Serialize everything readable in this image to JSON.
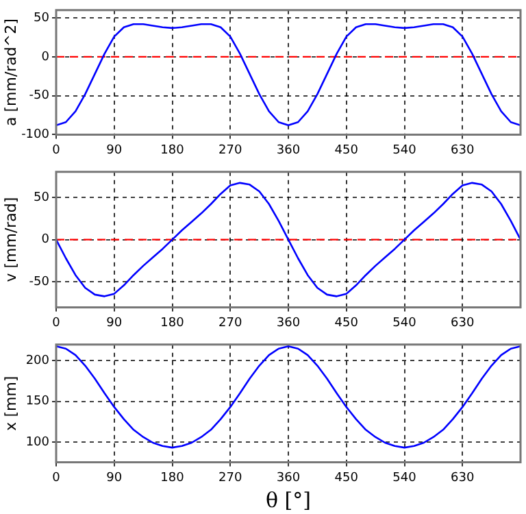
{
  "chart_data": [
    {
      "type": "line",
      "ylabel": "a [mm/rad^2]",
      "x": [
        0,
        15,
        30,
        45,
        60,
        75,
        90,
        105,
        120,
        135,
        150,
        165,
        180,
        195,
        210,
        225,
        240,
        255,
        270,
        285,
        300,
        315,
        330,
        345,
        360,
        375,
        390,
        405,
        420,
        435,
        450,
        465,
        480,
        495,
        510,
        525,
        540,
        555,
        570,
        585,
        600,
        615,
        630,
        645,
        660,
        675,
        690,
        705,
        720
      ],
      "series": [
        {
          "color": "#0000ff",
          "values": [
            -88,
            -84,
            -70,
            -48,
            -22,
            4,
            26,
            38,
            42,
            42,
            40,
            38,
            37,
            38,
            40,
            42,
            42,
            38,
            26,
            4,
            -22,
            -48,
            -70,
            -84,
            -88,
            -84,
            -70,
            -48,
            -22,
            4,
            26,
            38,
            42,
            42,
            40,
            38,
            37,
            38,
            40,
            42,
            42,
            38,
            26,
            4,
            -22,
            -48,
            -70,
            -84,
            -88
          ]
        }
      ],
      "xlim": [
        0,
        720
      ],
      "xticks": [
        0,
        90,
        180,
        270,
        360,
        450,
        540,
        630
      ],
      "ylim": [
        -100,
        60
      ],
      "yticks": [
        -100,
        -50,
        0,
        50
      ],
      "grid": true,
      "legend": false,
      "marker": "none",
      "ref_lines": [
        {
          "axis": "y",
          "value": 0,
          "color": "#ff0000",
          "line_style": "dashed"
        }
      ]
    },
    {
      "type": "line",
      "ylabel": "v [mm/rad]",
      "x": [
        0,
        15,
        30,
        45,
        60,
        75,
        90,
        105,
        120,
        135,
        150,
        165,
        180,
        195,
        210,
        225,
        240,
        255,
        270,
        285,
        300,
        315,
        330,
        345,
        360,
        375,
        390,
        405,
        420,
        435,
        450,
        465,
        480,
        495,
        510,
        525,
        540,
        555,
        570,
        585,
        600,
        615,
        630,
        645,
        660,
        675,
        690,
        705,
        720
      ],
      "series": [
        {
          "color": "#0000ff",
          "values": [
            0,
            -22,
            -42,
            -57,
            -65,
            -67,
            -64,
            -54,
            -42,
            -31,
            -21,
            -11,
            0,
            11,
            21,
            31,
            42,
            54,
            64,
            67,
            65,
            57,
            42,
            22,
            0,
            -22,
            -42,
            -57,
            -65,
            -67,
            -64,
            -54,
            -42,
            -31,
            -21,
            -11,
            0,
            11,
            21,
            31,
            42,
            54,
            64,
            67,
            65,
            57,
            42,
            22,
            0
          ]
        }
      ],
      "xlim": [
        0,
        720
      ],
      "xticks": [
        0,
        90,
        180,
        270,
        360,
        450,
        540,
        630
      ],
      "ylim": [
        -80,
        80
      ],
      "yticks": [
        -50,
        0,
        50
      ],
      "grid": true,
      "legend": false,
      "marker": "none",
      "ref_lines": [
        {
          "axis": "y",
          "value": 0,
          "color": "#ff0000",
          "line_style": "dashed"
        }
      ]
    },
    {
      "type": "line",
      "ylabel": "x [mm]",
      "xlabel": "θ [°]",
      "x": [
        0,
        15,
        30,
        45,
        60,
        75,
        90,
        105,
        120,
        135,
        150,
        165,
        180,
        195,
        210,
        225,
        240,
        255,
        270,
        285,
        300,
        315,
        330,
        345,
        360,
        375,
        390,
        405,
        420,
        435,
        450,
        465,
        480,
        495,
        510,
        525,
        540,
        555,
        570,
        585,
        600,
        615,
        630,
        645,
        660,
        675,
        690,
        705,
        720
      ],
      "series": [
        {
          "color": "#0000ff",
          "values": [
            218,
            215,
            207,
            194,
            178,
            160,
            143,
            128,
            115,
            106,
            99,
            95,
            93,
            95,
            99,
            106,
            115,
            128,
            143,
            160,
            178,
            194,
            207,
            215,
            218,
            215,
            207,
            194,
            178,
            160,
            143,
            128,
            115,
            106,
            99,
            95,
            93,
            95,
            99,
            106,
            115,
            128,
            143,
            160,
            178,
            194,
            207,
            215,
            218
          ]
        }
      ],
      "xlim": [
        0,
        720
      ],
      "xticks": [
        0,
        90,
        180,
        270,
        360,
        450,
        540,
        630
      ],
      "ylim": [
        75,
        220
      ],
      "yticks": [
        100,
        150,
        200
      ],
      "grid": true,
      "legend": false,
      "marker": "none"
    }
  ]
}
